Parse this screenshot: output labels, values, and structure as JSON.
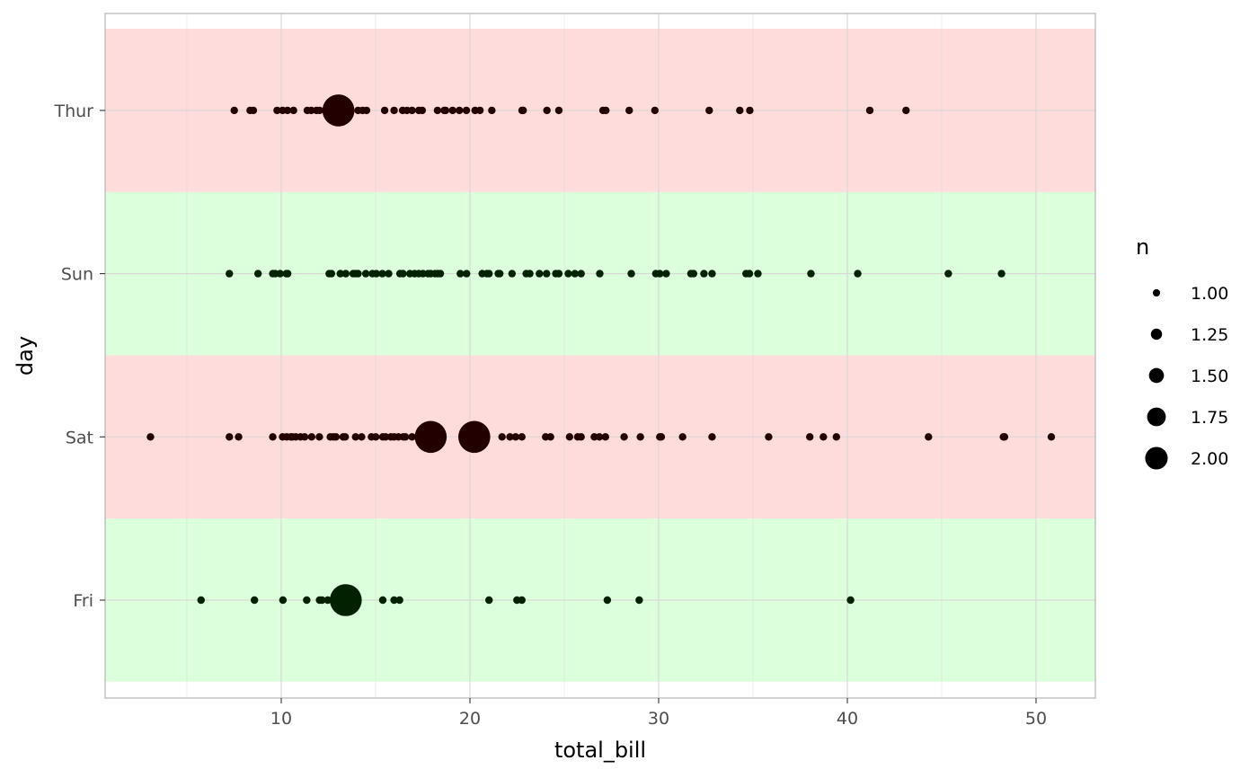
{
  "chart_data": {
    "type": "scatter",
    "xlabel": "total_bill",
    "ylabel": "day",
    "xlim": [
      0.9,
      53.2
    ],
    "x_ticks": [
      10,
      20,
      30,
      40,
      50
    ],
    "x_minor_ticks": [
      5,
      15,
      25,
      35,
      45
    ],
    "categories": [
      "Fri",
      "Sat",
      "Sun",
      "Thur"
    ],
    "grid": true,
    "band_colors": {
      "Thur": "#FFDCDC",
      "Sun": "#DCFFDC",
      "Sat": "#FFDCDC",
      "Fri": "#DCFFDC"
    },
    "point_colors": {
      "Thur": "#220000",
      "Sun": "#002200",
      "Sat": "#220000",
      "Fri": "#002200"
    },
    "grid_color": "#D6D6D6",
    "panel_border_color": "#B3B3B3",
    "legend": {
      "title": "n",
      "placement": "right",
      "entries": [
        {
          "label": "1.00",
          "value": 1.0
        },
        {
          "label": "1.25",
          "value": 1.25
        },
        {
          "label": "1.50",
          "value": 1.5
        },
        {
          "label": "1.75",
          "value": 1.75
        },
        {
          "label": "2.00",
          "value": 2.0
        }
      ]
    },
    "series": [
      {
        "day": "Thur",
        "points": [
          {
            "x": 7.51,
            "n": 1
          },
          {
            "x": 8.35,
            "n": 1
          },
          {
            "x": 8.52,
            "n": 1
          },
          {
            "x": 9.78,
            "n": 1
          },
          {
            "x": 10.07,
            "n": 1
          },
          {
            "x": 10.33,
            "n": 1
          },
          {
            "x": 10.65,
            "n": 1
          },
          {
            "x": 11.38,
            "n": 1
          },
          {
            "x": 11.59,
            "n": 1
          },
          {
            "x": 11.87,
            "n": 1
          },
          {
            "x": 12.03,
            "n": 1
          },
          {
            "x": 12.43,
            "n": 1
          },
          {
            "x": 12.74,
            "n": 1
          },
          {
            "x": 13.03,
            "n": 2
          },
          {
            "x": 13.51,
            "n": 1
          },
          {
            "x": 14.07,
            "n": 1
          },
          {
            "x": 14.31,
            "n": 1
          },
          {
            "x": 14.52,
            "n": 1
          },
          {
            "x": 15.48,
            "n": 1
          },
          {
            "x": 15.98,
            "n": 1
          },
          {
            "x": 16.43,
            "n": 1
          },
          {
            "x": 16.66,
            "n": 1
          },
          {
            "x": 16.93,
            "n": 1
          },
          {
            "x": 17.29,
            "n": 1
          },
          {
            "x": 17.47,
            "n": 1
          },
          {
            "x": 18.28,
            "n": 1
          },
          {
            "x": 18.64,
            "n": 1
          },
          {
            "x": 18.71,
            "n": 1
          },
          {
            "x": 19.08,
            "n": 1
          },
          {
            "x": 19.44,
            "n": 1
          },
          {
            "x": 19.81,
            "n": 1
          },
          {
            "x": 20.27,
            "n": 1
          },
          {
            "x": 20.53,
            "n": 1
          },
          {
            "x": 21.16,
            "n": 1
          },
          {
            "x": 22.76,
            "n": 1
          },
          {
            "x": 22.82,
            "n": 1
          },
          {
            "x": 24.08,
            "n": 1
          },
          {
            "x": 24.71,
            "n": 1
          },
          {
            "x": 27.05,
            "n": 1
          },
          {
            "x": 27.2,
            "n": 1
          },
          {
            "x": 28.44,
            "n": 1
          },
          {
            "x": 29.8,
            "n": 1
          },
          {
            "x": 32.68,
            "n": 1
          },
          {
            "x": 34.3,
            "n": 1
          },
          {
            "x": 34.83,
            "n": 1
          },
          {
            "x": 41.19,
            "n": 1
          },
          {
            "x": 43.11,
            "n": 1
          }
        ]
      },
      {
        "day": "Sun",
        "points": [
          {
            "x": 7.25,
            "n": 1
          },
          {
            "x": 8.77,
            "n": 1
          },
          {
            "x": 9.55,
            "n": 1
          },
          {
            "x": 9.68,
            "n": 1
          },
          {
            "x": 9.94,
            "n": 1
          },
          {
            "x": 10.27,
            "n": 1
          },
          {
            "x": 10.34,
            "n": 1
          },
          {
            "x": 12.54,
            "n": 1
          },
          {
            "x": 12.66,
            "n": 1
          },
          {
            "x": 13.13,
            "n": 1
          },
          {
            "x": 13.42,
            "n": 1
          },
          {
            "x": 13.81,
            "n": 1
          },
          {
            "x": 13.94,
            "n": 1
          },
          {
            "x": 14.07,
            "n": 1
          },
          {
            "x": 14.48,
            "n": 1
          },
          {
            "x": 14.83,
            "n": 1
          },
          {
            "x": 15.04,
            "n": 1
          },
          {
            "x": 15.36,
            "n": 1
          },
          {
            "x": 15.69,
            "n": 1
          },
          {
            "x": 16.29,
            "n": 1
          },
          {
            "x": 16.45,
            "n": 1
          },
          {
            "x": 16.82,
            "n": 1
          },
          {
            "x": 17.07,
            "n": 1
          },
          {
            "x": 17.29,
            "n": 1
          },
          {
            "x": 17.51,
            "n": 1
          },
          {
            "x": 17.78,
            "n": 1
          },
          {
            "x": 17.92,
            "n": 1
          },
          {
            "x": 18.15,
            "n": 1
          },
          {
            "x": 18.29,
            "n": 1
          },
          {
            "x": 18.43,
            "n": 1
          },
          {
            "x": 19.49,
            "n": 1
          },
          {
            "x": 19.82,
            "n": 1
          },
          {
            "x": 20.65,
            "n": 1
          },
          {
            "x": 20.9,
            "n": 1
          },
          {
            "x": 21.01,
            "n": 1
          },
          {
            "x": 21.5,
            "n": 1
          },
          {
            "x": 21.58,
            "n": 1
          },
          {
            "x": 22.23,
            "n": 1
          },
          {
            "x": 22.98,
            "n": 1
          },
          {
            "x": 23.17,
            "n": 1
          },
          {
            "x": 23.68,
            "n": 1
          },
          {
            "x": 24.06,
            "n": 1
          },
          {
            "x": 24.55,
            "n": 1
          },
          {
            "x": 24.71,
            "n": 1
          },
          {
            "x": 25.21,
            "n": 1
          },
          {
            "x": 25.56,
            "n": 1
          },
          {
            "x": 25.89,
            "n": 1
          },
          {
            "x": 26.88,
            "n": 1
          },
          {
            "x": 28.55,
            "n": 1
          },
          {
            "x": 29.85,
            "n": 1
          },
          {
            "x": 30.06,
            "n": 1
          },
          {
            "x": 30.4,
            "n": 1
          },
          {
            "x": 31.71,
            "n": 1
          },
          {
            "x": 31.85,
            "n": 1
          },
          {
            "x": 32.4,
            "n": 1
          },
          {
            "x": 32.83,
            "n": 1
          },
          {
            "x": 34.63,
            "n": 1
          },
          {
            "x": 34.81,
            "n": 1
          },
          {
            "x": 35.26,
            "n": 1
          },
          {
            "x": 38.07,
            "n": 1
          },
          {
            "x": 40.55,
            "n": 1
          },
          {
            "x": 45.35,
            "n": 1
          },
          {
            "x": 48.17,
            "n": 1
          }
        ]
      },
      {
        "day": "Sat",
        "points": [
          {
            "x": 3.07,
            "n": 1
          },
          {
            "x": 7.25,
            "n": 1
          },
          {
            "x": 7.74,
            "n": 1
          },
          {
            "x": 9.55,
            "n": 1
          },
          {
            "x": 10.07,
            "n": 1
          },
          {
            "x": 10.29,
            "n": 1
          },
          {
            "x": 10.51,
            "n": 1
          },
          {
            "x": 10.59,
            "n": 1
          },
          {
            "x": 10.77,
            "n": 1
          },
          {
            "x": 11.02,
            "n": 1
          },
          {
            "x": 11.24,
            "n": 1
          },
          {
            "x": 11.61,
            "n": 1
          },
          {
            "x": 12.02,
            "n": 1
          },
          {
            "x": 12.6,
            "n": 1
          },
          {
            "x": 12.76,
            "n": 1
          },
          {
            "x": 12.9,
            "n": 1
          },
          {
            "x": 13.28,
            "n": 1
          },
          {
            "x": 13.39,
            "n": 1
          },
          {
            "x": 13.94,
            "n": 1
          },
          {
            "x": 14.26,
            "n": 1
          },
          {
            "x": 14.78,
            "n": 1
          },
          {
            "x": 15.01,
            "n": 1
          },
          {
            "x": 15.38,
            "n": 1
          },
          {
            "x": 15.53,
            "n": 1
          },
          {
            "x": 15.81,
            "n": 1
          },
          {
            "x": 15.98,
            "n": 1
          },
          {
            "x": 16.21,
            "n": 1
          },
          {
            "x": 16.47,
            "n": 1
          },
          {
            "x": 16.58,
            "n": 1
          },
          {
            "x": 16.93,
            "n": 1
          },
          {
            "x": 17.31,
            "n": 1
          },
          {
            "x": 17.92,
            "n": 2
          },
          {
            "x": 18.24,
            "n": 1
          },
          {
            "x": 18.35,
            "n": 1
          },
          {
            "x": 20.23,
            "n": 2
          },
          {
            "x": 20.69,
            "n": 1
          },
          {
            "x": 21.7,
            "n": 1
          },
          {
            "x": 22.12,
            "n": 1
          },
          {
            "x": 22.42,
            "n": 1
          },
          {
            "x": 22.75,
            "n": 1
          },
          {
            "x": 24.01,
            "n": 1
          },
          {
            "x": 24.27,
            "n": 1
          },
          {
            "x": 25.28,
            "n": 1
          },
          {
            "x": 25.71,
            "n": 1
          },
          {
            "x": 25.89,
            "n": 1
          },
          {
            "x": 26.59,
            "n": 1
          },
          {
            "x": 26.86,
            "n": 1
          },
          {
            "x": 27.18,
            "n": 1
          },
          {
            "x": 28.17,
            "n": 1
          },
          {
            "x": 29.03,
            "n": 1
          },
          {
            "x": 30.06,
            "n": 1
          },
          {
            "x": 30.14,
            "n": 1
          },
          {
            "x": 31.27,
            "n": 1
          },
          {
            "x": 32.83,
            "n": 1
          },
          {
            "x": 35.83,
            "n": 1
          },
          {
            "x": 38.01,
            "n": 1
          },
          {
            "x": 38.73,
            "n": 1
          },
          {
            "x": 39.42,
            "n": 1
          },
          {
            "x": 44.3,
            "n": 1
          },
          {
            "x": 48.27,
            "n": 1
          },
          {
            "x": 48.33,
            "n": 1
          },
          {
            "x": 50.81,
            "n": 1
          }
        ]
      },
      {
        "day": "Fri",
        "points": [
          {
            "x": 5.75,
            "n": 1
          },
          {
            "x": 8.58,
            "n": 1
          },
          {
            "x": 10.09,
            "n": 1
          },
          {
            "x": 11.35,
            "n": 1
          },
          {
            "x": 12.03,
            "n": 1
          },
          {
            "x": 12.16,
            "n": 1
          },
          {
            "x": 12.46,
            "n": 1
          },
          {
            "x": 13.42,
            "n": 2
          },
          {
            "x": 15.38,
            "n": 1
          },
          {
            "x": 15.98,
            "n": 1
          },
          {
            "x": 16.27,
            "n": 1
          },
          {
            "x": 21.01,
            "n": 1
          },
          {
            "x": 22.49,
            "n": 1
          },
          {
            "x": 22.75,
            "n": 1
          },
          {
            "x": 27.28,
            "n": 1
          },
          {
            "x": 28.97,
            "n": 1
          },
          {
            "x": 40.17,
            "n": 1
          }
        ]
      }
    ]
  }
}
